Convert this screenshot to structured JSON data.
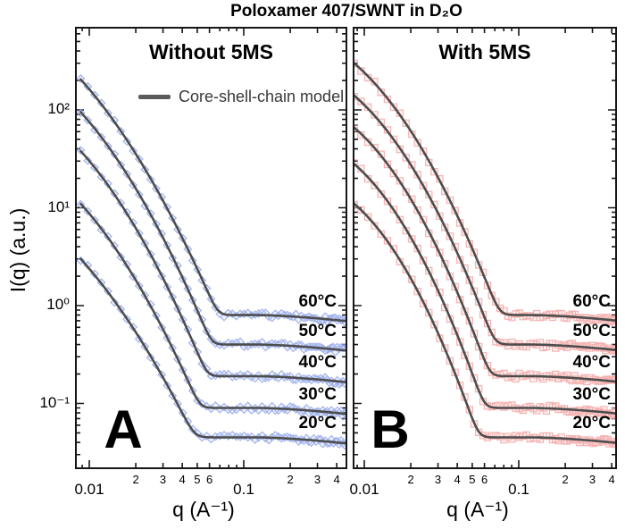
{
  "chart_data": {
    "type": "scatter+line",
    "title": "Poloxamer 407/SWNT in D₂O",
    "x_label": "q (A⁻¹)",
    "y_label": "I(q) (a.u.)",
    "x_scale": "log",
    "y_scale": "log",
    "x_range_inv_angstrom": [
      0.0082,
      0.46
    ],
    "y_range_au": [
      0.022,
      700
    ],
    "grid": false,
    "legend": {
      "label": "Core-shell-chain model",
      "position": "upper area of panel A"
    },
    "model_line_color": "#4d4d4d",
    "y_axis": {
      "ticks": [
        {
          "label": "10²",
          "value": 100
        },
        {
          "label": "10¹",
          "value": 10
        },
        {
          "label": "10⁰",
          "value": 1
        },
        {
          "label": "10⁻¹",
          "value": 0.1
        }
      ]
    },
    "x_axis": {
      "major_ticks": [
        {
          "label": "0.01",
          "value": 0.01
        },
        {
          "label": "0.1",
          "value": 0.1
        }
      ],
      "labeled_minor_ticks": [
        {
          "label": "2",
          "value": 0.02
        },
        {
          "label": "3",
          "value": 0.03
        },
        {
          "label": "4",
          "value": 0.04
        },
        {
          "label": "5",
          "value": 0.05
        },
        {
          "label": "6",
          "value": 0.06
        },
        {
          "label": "2",
          "value": 0.2
        },
        {
          "label": "3",
          "value": 0.3
        },
        {
          "label": "4",
          "value": 0.4
        }
      ],
      "unlabeled_minor_ticks": [
        0.009,
        0.07,
        0.08,
        0.09
      ]
    },
    "panels": [
      {
        "name": "A",
        "panel_letter": "A",
        "title": "Without 5MS",
        "marker": "diamond",
        "marker_color": "#8fa3e8",
        "series": [
          {
            "label": "60°C",
            "temperature_c": 60,
            "low_q_intensity_au": 205,
            "plateau_intensity_au": 0.8,
            "knee_q_inv_angstrom": 0.068
          },
          {
            "label": "50°C",
            "temperature_c": 50,
            "low_q_intensity_au": 95,
            "plateau_intensity_au": 0.4,
            "knee_q_inv_angstrom": 0.062
          },
          {
            "label": "40°C",
            "temperature_c": 40,
            "low_q_intensity_au": 38,
            "plateau_intensity_au": 0.19,
            "knee_q_inv_angstrom": 0.058
          },
          {
            "label": "30°C",
            "temperature_c": 30,
            "low_q_intensity_au": 11,
            "plateau_intensity_au": 0.09,
            "knee_q_inv_angstrom": 0.052
          },
          {
            "label": "20°C",
            "temperature_c": 20,
            "low_q_intensity_au": 3.0,
            "plateau_intensity_au": 0.045,
            "knee_q_inv_angstrom": 0.048
          }
        ]
      },
      {
        "name": "B",
        "panel_letter": "B",
        "title": "With 5MS",
        "marker": "square",
        "marker_color": "#f2a3a1",
        "series": [
          {
            "label": "60°C",
            "temperature_c": 60,
            "low_q_intensity_au": 300,
            "plateau_intensity_au": 0.8,
            "knee_q_inv_angstrom": 0.075
          },
          {
            "label": "50°C",
            "temperature_c": 50,
            "low_q_intensity_au": 140,
            "plateau_intensity_au": 0.4,
            "knee_q_inv_angstrom": 0.07
          },
          {
            "label": "40°C",
            "temperature_c": 40,
            "low_q_intensity_au": 66,
            "plateau_intensity_au": 0.19,
            "knee_q_inv_angstrom": 0.065
          },
          {
            "label": "30°C",
            "temperature_c": 30,
            "low_q_intensity_au": 28,
            "plateau_intensity_au": 0.09,
            "knee_q_inv_angstrom": 0.06
          },
          {
            "label": "20°C",
            "temperature_c": 20,
            "low_q_intensity_au": 11,
            "plateau_intensity_au": 0.045,
            "knee_q_inv_angstrom": 0.055
          }
        ]
      }
    ]
  }
}
